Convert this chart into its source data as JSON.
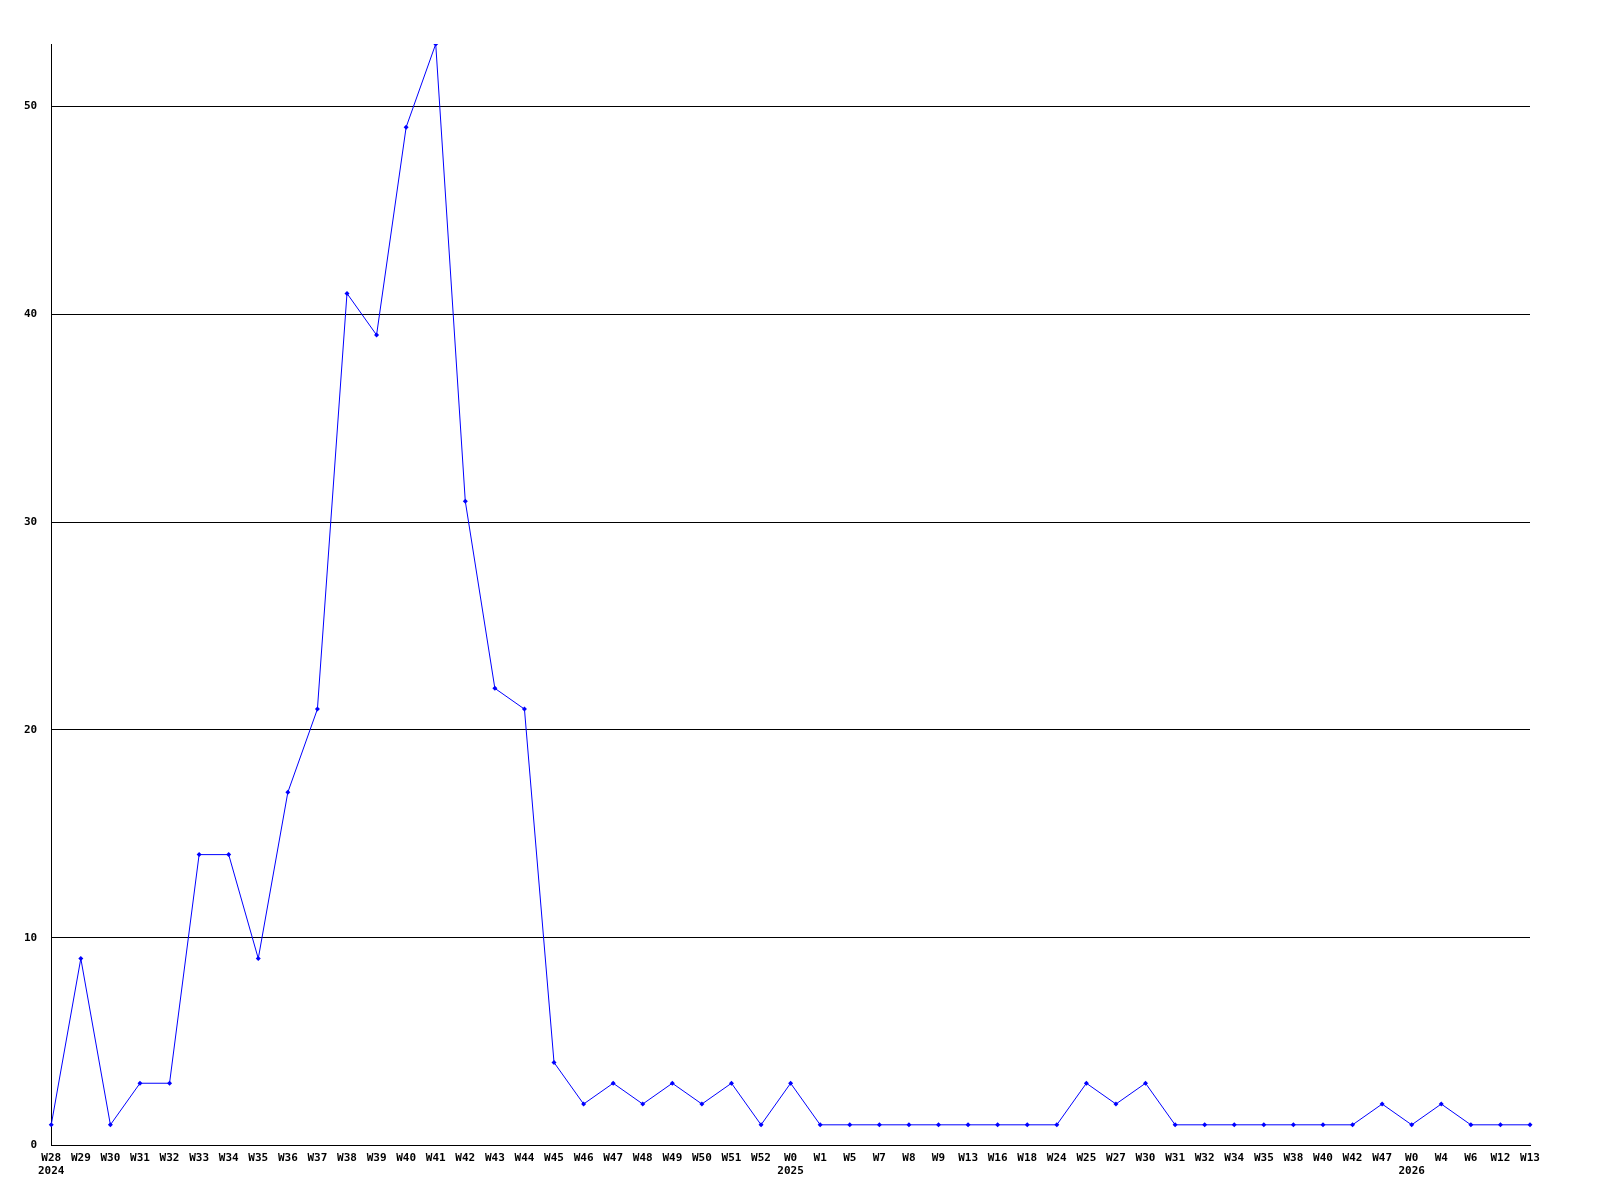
{
  "chart_data": {
    "type": "line",
    "categories": [
      "W28\n2024",
      "W29",
      "W30",
      "W31",
      "W32",
      "W33",
      "W34",
      "W35",
      "W36",
      "W37",
      "W38",
      "W39",
      "W40",
      "W41",
      "W42",
      "W43",
      "W44",
      "W45",
      "W46",
      "W47",
      "W48",
      "W49",
      "W50",
      "W51",
      "W52",
      "W0\n2025",
      "W1",
      "W5",
      "W7",
      "W8",
      "W9",
      "W13",
      "W16",
      "W18",
      "W24",
      "W25",
      "W27",
      "W30",
      "W31",
      "W32",
      "W34",
      "W35",
      "W38",
      "W40",
      "W42",
      "W47",
      "W0\n2026",
      "W4",
      "W6",
      "W12",
      "W13"
    ],
    "series": [
      {
        "color": "#0000ff",
        "values": [
          1,
          9,
          1,
          3,
          3,
          14,
          14,
          9,
          17,
          21,
          41,
          39,
          49,
          53,
          31,
          22,
          21,
          4,
          2,
          3,
          2,
          3,
          2,
          3,
          1,
          3,
          1,
          1,
          1,
          1,
          1,
          1,
          1,
          1,
          1,
          3,
          2,
          3,
          1,
          1,
          1,
          1,
          1,
          1,
          1,
          2,
          1,
          2,
          1,
          1,
          1
        ]
      }
    ],
    "ylim": [
      0,
      53
    ],
    "yticks": [
      0,
      10,
      20,
      30,
      40,
      50
    ],
    "grid": "y",
    "legend": false,
    "marker": "diamond",
    "line_style": "solid"
  }
}
